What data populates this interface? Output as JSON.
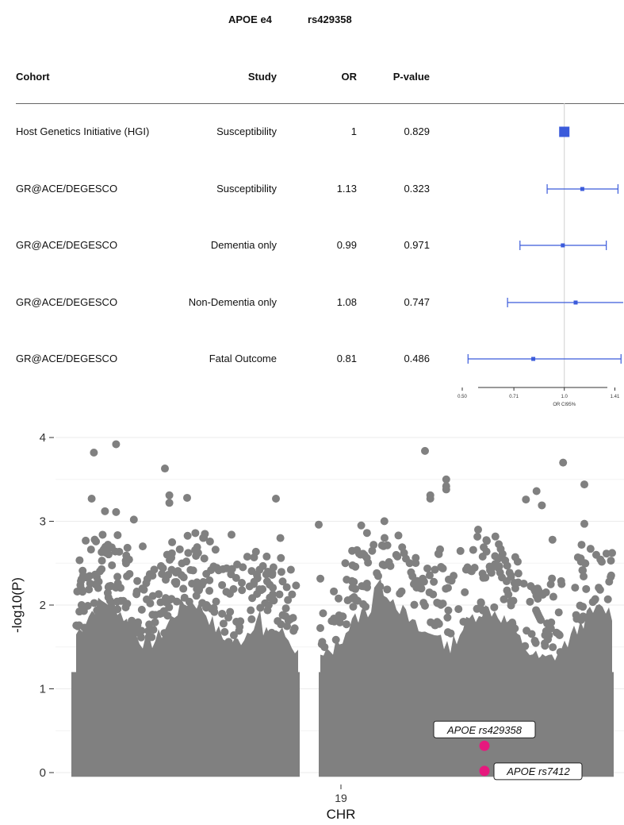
{
  "header": {
    "gene": "APOE e4",
    "snp": "rs429358"
  },
  "table": {
    "columns": [
      "Cohort",
      "Study",
      "OR",
      "P-value"
    ],
    "rows": [
      {
        "cohort": "Host Genetics Initiative (HGI)",
        "study": "Susceptibility",
        "or": "1",
        "p": "0.829"
      },
      {
        "cohort": "GR@ACE/DEGESCO",
        "study": "Susceptibility",
        "or": "1.13",
        "p": "0.323"
      },
      {
        "cohort": "GR@ACE/DEGESCO",
        "study": "Dementia only",
        "or": "0.99",
        "p": "0.971"
      },
      {
        "cohort": "GR@ACE/DEGESCO",
        "study": "Non-Dementia only",
        "or": "1.08",
        "p": "0.747"
      },
      {
        "cohort": "GR@ACE/DEGESCO",
        "study": "Fatal Outcome",
        "or": "0.81",
        "p": "0.486"
      }
    ]
  },
  "chart_data": [
    {
      "type": "scatter",
      "subtype": "forest",
      "xlabel": "OR CI95%",
      "x_scale": "log",
      "x_ticks": [
        "0.50",
        "0.71",
        "1.0",
        "1.41"
      ],
      "xlim": [
        0.5,
        1.5
      ],
      "reference_line": 1.0,
      "series": [
        {
          "points": [
            {
              "or": 1.0,
              "ci": [
                0.99,
                1.01
              ],
              "marker": "square-large"
            },
            {
              "or": 1.13,
              "ci": [
                0.89,
                1.44
              ]
            },
            {
              "or": 0.99,
              "ci": [
                0.74,
                1.33
              ]
            },
            {
              "or": 1.08,
              "ci": [
                0.68,
                1.5
              ]
            },
            {
              "or": 0.81,
              "ci": [
                0.52,
                1.47
              ]
            }
          ]
        }
      ],
      "colors": {
        "points": "#3b5bdb"
      }
    },
    {
      "type": "scatter",
      "subtype": "manhattan",
      "xlabel": "CHR",
      "ylabel": "-log10(P)",
      "x_ticks": [
        "19"
      ],
      "ylim": [
        -0.1,
        4.1
      ],
      "y_ticks": [
        0,
        1,
        2,
        3,
        4
      ],
      "grid": true,
      "colors": {
        "points": "#808080",
        "highlight": "#e6197e"
      },
      "top_points": [
        [
          0.04,
          3.82
        ],
        [
          0.09,
          3.92
        ],
        [
          0.2,
          3.63
        ],
        [
          0.035,
          3.27
        ],
        [
          0.065,
          3.12
        ],
        [
          0.09,
          3.11
        ],
        [
          0.13,
          3.02
        ],
        [
          0.21,
          3.31
        ],
        [
          0.21,
          3.22
        ],
        [
          0.25,
          3.28
        ],
        [
          0.45,
          3.27
        ],
        [
          0.63,
          2.95
        ],
        [
          0.29,
          2.85
        ],
        [
          0.35,
          2.84
        ],
        [
          0.46,
          2.8
        ],
        [
          0.55,
          2.96
        ],
        [
          0.7,
          2.83
        ],
        [
          0.75,
          3.84
        ],
        [
          0.76,
          3.31
        ],
        [
          0.76,
          3.27
        ],
        [
          0.79,
          3.5
        ],
        [
          0.79,
          3.42
        ],
        [
          0.79,
          3.38
        ],
        [
          0.85,
          2.9
        ],
        [
          0.94,
          3.26
        ],
        [
          0.96,
          3.36
        ],
        [
          0.97,
          3.19
        ],
        [
          1.01,
          3.7
        ],
        [
          1.05,
          3.44
        ],
        [
          1.05,
          2.97
        ],
        [
          1.1,
          2.53
        ],
        [
          0.99,
          2.78
        ],
        [
          0.83,
          2.45
        ],
        [
          0.6,
          2.5
        ],
        [
          0.4,
          2.25
        ],
        [
          0.15,
          2.7
        ]
      ],
      "highlights": [
        {
          "label": "APOE rs429358",
          "x": 0.91,
          "y": 0.32
        },
        {
          "label": "APOE rs7412",
          "x": 0.91,
          "y": 0.02
        }
      ]
    }
  ]
}
